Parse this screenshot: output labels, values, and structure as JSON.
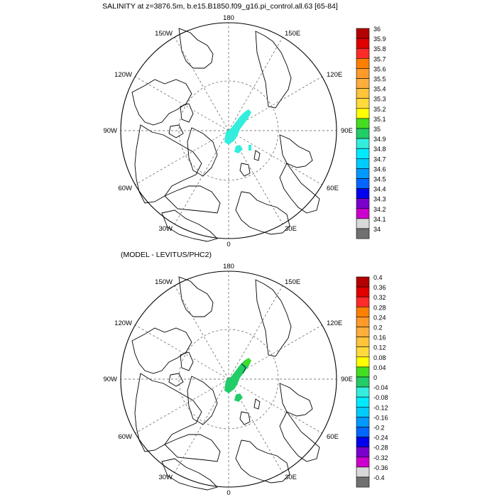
{
  "top_panel": {
    "title": "SALINITY at z=3876.5m, b.e15.B1850.f09_g16.pi_control.all.63 [65-84]",
    "lon_labels": [
      "180",
      "150E",
      "120E",
      "90E",
      "60E",
      "30E",
      "0",
      "30W",
      "60W",
      "90W",
      "120W",
      "150W"
    ],
    "colorbar": {
      "labels": [
        "36",
        "35.9",
        "35.8",
        "35.7",
        "35.6",
        "35.5",
        "35.4",
        "35.3",
        "35.2",
        "35.1",
        "35",
        "34.9",
        "34.8",
        "34.7",
        "34.6",
        "34.5",
        "34.4",
        "34.3",
        "34.2",
        "34.1",
        "34"
      ],
      "colors_top_to_bottom": [
        "#b30000",
        "#e00000",
        "#ff2a2a",
        "#ff7f00",
        "#ff9a2a",
        "#ffae3c",
        "#ffc43a",
        "#ffda3a",
        "#ffff00",
        "#44dd22",
        "#22cc66",
        "#33eedd",
        "#00eaff",
        "#00ccff",
        "#0099ff",
        "#0066ff",
        "#0000ee",
        "#7a00cc",
        "#cc00cc",
        "#d8d8d8",
        "#707070"
      ]
    },
    "shaded_value_color": "#33eedd"
  },
  "bottom_panel": {
    "title": "(MODEL - LEVITUS/PHC2)",
    "lon_labels": [
      "180",
      "150E",
      "120E",
      "90E",
      "60E",
      "30E",
      "0",
      "30W",
      "60W",
      "90W",
      "120W",
      "150W"
    ],
    "colorbar": {
      "labels": [
        "0.4",
        "0.36",
        "0.32",
        "0.28",
        "0.24",
        "0.2",
        "0.16",
        "0.12",
        "0.08",
        "0.04",
        "0",
        "-0.04",
        "-0.08",
        "-0.12",
        "-0.16",
        "-0.2",
        "-0.24",
        "-0.28",
        "-0.32",
        "-0.36",
        "-0.4"
      ],
      "colors_top_to_bottom": [
        "#b30000",
        "#e00000",
        "#ff2a2a",
        "#ff7f00",
        "#ff9a2a",
        "#ffae3c",
        "#ffc43a",
        "#ffda3a",
        "#ffff00",
        "#44dd22",
        "#22cc66",
        "#33eedd",
        "#00eaff",
        "#00ccff",
        "#0099ff",
        "#0066ff",
        "#0000ee",
        "#7a00cc",
        "#cc00cc",
        "#d8d8d8",
        "#707070"
      ]
    },
    "shaded_value_color": "#22cc66"
  }
}
